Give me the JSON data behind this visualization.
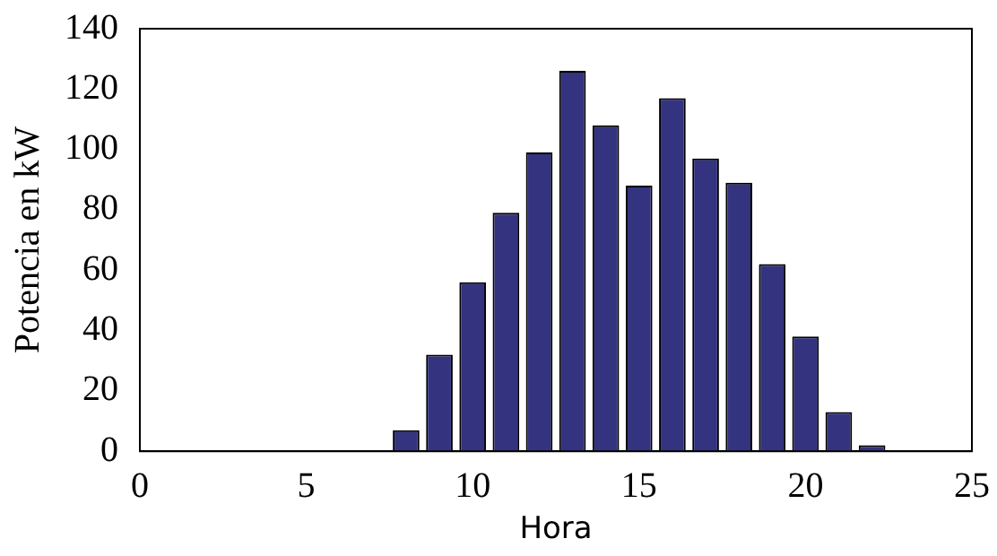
{
  "chart_data": {
    "type": "bar",
    "xlabel": "Hora",
    "ylabel": "Potencia en kW",
    "x": [
      8,
      9,
      10,
      11,
      12,
      13,
      14,
      15,
      16,
      17,
      18,
      19,
      20,
      21,
      22
    ],
    "values": [
      7,
      32,
      56,
      79,
      99,
      126,
      108,
      88,
      117,
      97,
      89,
      62,
      38,
      13,
      2
    ],
    "color": "#33337f",
    "xlim": [
      0,
      25
    ],
    "xticks": [
      0,
      5,
      10,
      15,
      20,
      25
    ],
    "ylim": [
      0,
      140
    ],
    "yticks": [
      0,
      20,
      40,
      60,
      80,
      100,
      120,
      140
    ],
    "grid": false,
    "legend": false
  }
}
